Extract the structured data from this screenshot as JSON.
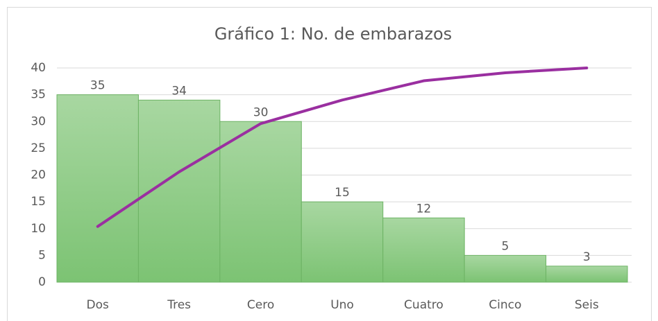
{
  "chart_data": {
    "type": "pareto",
    "title": "Gráfico 1: No. de embarazos",
    "categories": [
      "Dos",
      "Tres",
      "Cero",
      "Uno",
      "Cuatro",
      "Cinco",
      "Seis"
    ],
    "series": [
      {
        "type": "bar",
        "color": "#8cc985",
        "values": [
          35,
          34,
          30,
          15,
          12,
          5,
          3
        ]
      },
      {
        "type": "line",
        "color": "#9a2fa0",
        "values": [
          10.4,
          20.6,
          29.6,
          34.0,
          37.6,
          39.1,
          40
        ]
      }
    ],
    "ylim": [
      0,
      40
    ],
    "yticks": [
      0,
      5,
      10,
      15,
      20,
      25,
      30,
      35,
      40
    ],
    "grid": true
  }
}
